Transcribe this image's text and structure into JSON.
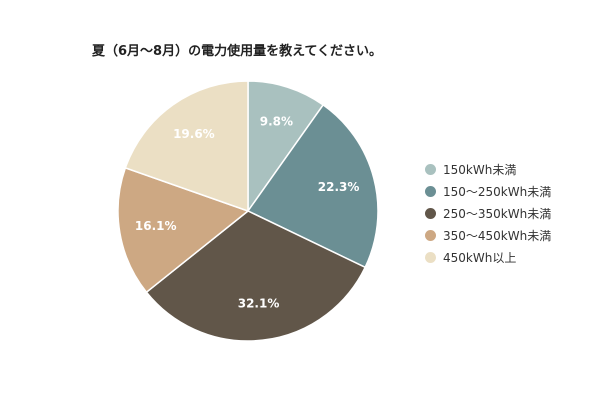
{
  "chart_data": {
    "type": "pie",
    "title": "夏（6月～8月）の電力使用量を教えてください。",
    "categories": [
      "150kWh未満",
      "150～250kWh未満",
      "250～350kWh未満",
      "350～450kWh未満",
      "450kWh以上"
    ],
    "values": [
      9.8,
      22.3,
      32.1,
      16.1,
      19.6
    ],
    "labels": [
      "9.8%",
      "22.3%",
      "32.1%",
      "16.1%",
      "19.6%"
    ],
    "colors": [
      "#a9c1bf",
      "#6b8f94",
      "#615649",
      "#cda883",
      "#ebdfc4"
    ],
    "label_colors": [
      "#ffffff",
      "#ffffff",
      "#ffffff",
      "#ffffff",
      "#ffffff"
    ],
    "start_angle": "12 o'clock",
    "direction": "clockwise",
    "legend_position": "right"
  }
}
